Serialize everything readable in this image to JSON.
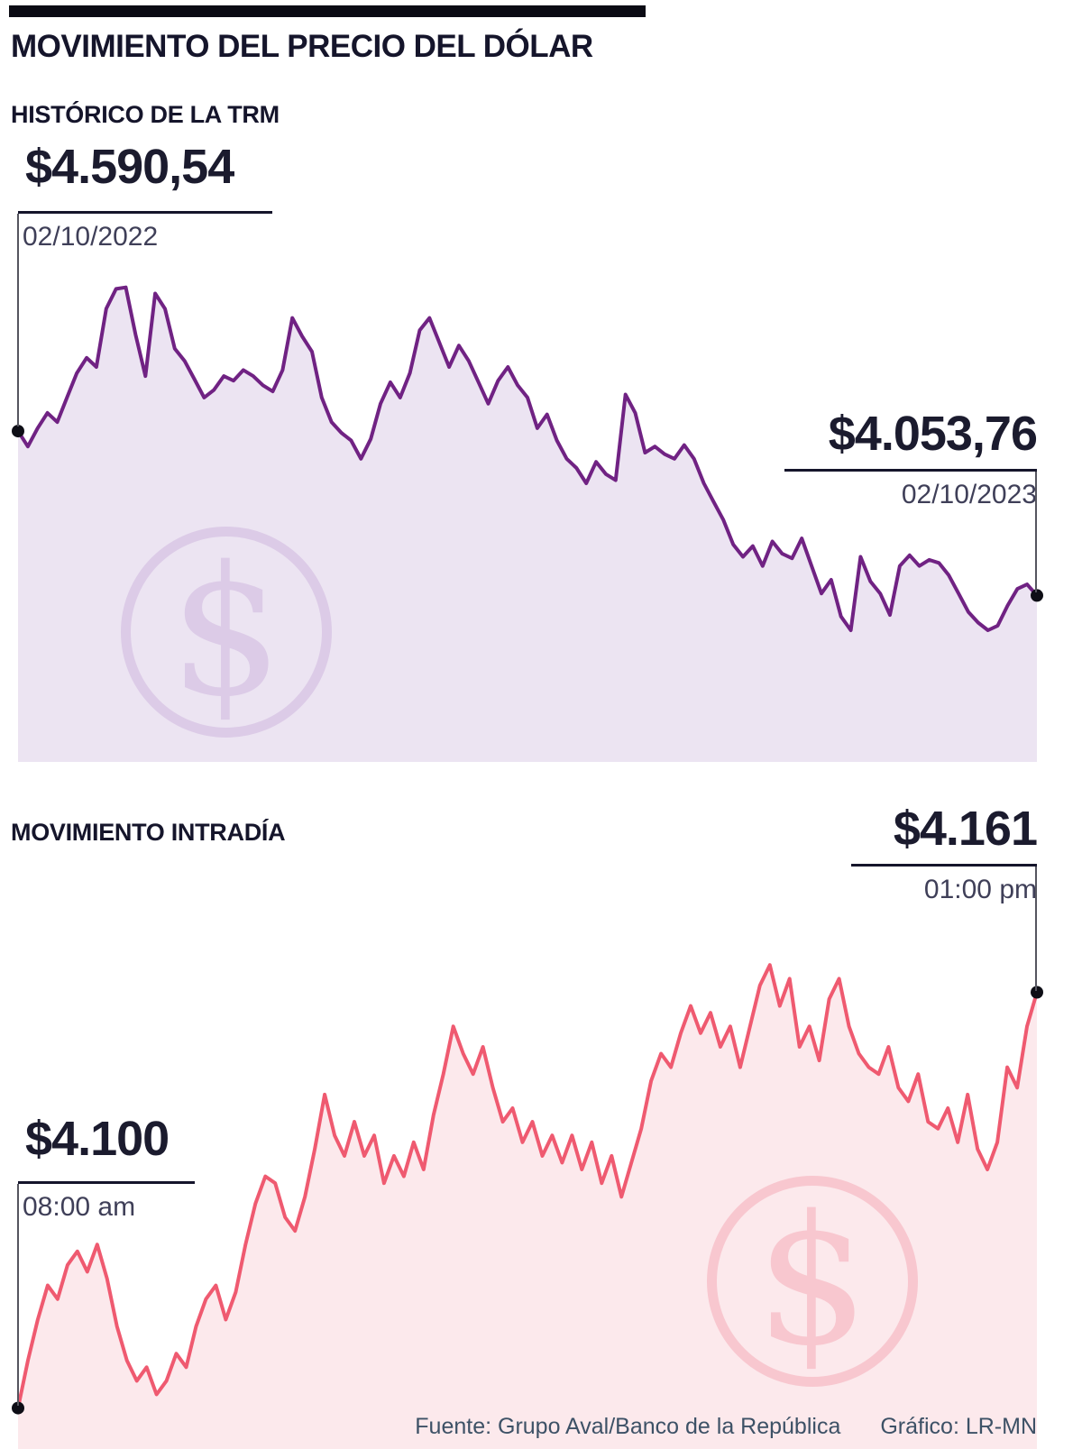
{
  "header": {
    "title": "MOVIMIENTO DEL PRECIO DEL DÓLAR"
  },
  "sections": {
    "trm": {
      "title": "HISTÓRICO DE LA TRM",
      "start": {
        "value": "$4.590,54",
        "label": "02/10/2022"
      },
      "end": {
        "value": "$4.053,76",
        "label": "02/10/2023"
      }
    },
    "intraday": {
      "title": "MOVIMIENTO INTRADÍA",
      "start": {
        "value": "$4.100",
        "label": "08:00 am"
      },
      "end": {
        "value": "$4.161",
        "label": "01:00 pm"
      }
    }
  },
  "watermark": {
    "symbol": "$",
    "icon": "dollar-sign-circle-icon"
  },
  "footer": {
    "source": "Fuente: Grupo Aval/Banco de la República",
    "credit": "Gráfico: LR-MN"
  },
  "colors": {
    "accent_bar": "#0b0b14",
    "title_text": "#15152b",
    "date_text": "#3f3f58",
    "footer_text": "#3d5166",
    "trm_line": "#702283",
    "trm_fill": "#ece4f2",
    "trm_watermark": "#dccbe7",
    "intraday_line": "#ef5a70",
    "intraday_fill": "#fce9ec",
    "intraday_watermark": "#f8c7cf",
    "endpoint_dot": "#0e0e16"
  },
  "chart_data": [
    {
      "id": "trm",
      "type": "area",
      "title": "HISTÓRICO DE LA TRM",
      "x_start_label": "02/10/2022",
      "x_end_label": "02/10/2023",
      "start_value": 4590.54,
      "end_value": 4053.76,
      "ylim": [
        3510,
        5115
      ],
      "grid": false,
      "legend": false,
      "line_color": "#702283",
      "fill_color": "#ece4f2",
      "dot_color": "#0e0e16",
      "values": [
        4590.54,
        4540,
        4600,
        4650,
        4620,
        4700,
        4780,
        4830,
        4800,
        4990,
        5055,
        5060,
        4905,
        4770,
        5040,
        4990,
        4860,
        4820,
        4760,
        4700,
        4725,
        4770,
        4755,
        4790,
        4770,
        4740,
        4720,
        4790,
        4960,
        4900,
        4850,
        4700,
        4620,
        4585,
        4560,
        4500,
        4565,
        4680,
        4750,
        4700,
        4780,
        4920,
        4960,
        4880,
        4800,
        4870,
        4820,
        4750,
        4680,
        4755,
        4800,
        4740,
        4700,
        4600,
        4645,
        4560,
        4500,
        4470,
        4420,
        4490,
        4450,
        4430,
        4710,
        4650,
        4520,
        4540,
        4515,
        4500,
        4545,
        4500,
        4420,
        4360,
        4300,
        4220,
        4180,
        4215,
        4150,
        4230,
        4190,
        4175,
        4240,
        4150,
        4060,
        4105,
        3985,
        3940,
        4180,
        4100,
        4060,
        3990,
        4150,
        4185,
        4150,
        4170,
        4160,
        4120,
        4060,
        4000,
        3965,
        3940,
        3955,
        4020,
        4075,
        4090,
        4053.76
      ]
    },
    {
      "id": "intraday",
      "type": "area",
      "title": "MOVIMIENTO INTRADÍA",
      "x_start_label": "08:00 am",
      "x_end_label": "01:00 pm",
      "start_value": 4100,
      "end_value": 4161,
      "ylim": [
        4094,
        4169
      ],
      "grid": false,
      "legend": false,
      "line_color": "#ef5a70",
      "fill_color": "#fce9ec",
      "dot_color": "#0e0e16",
      "values": [
        4100,
        4107,
        4113,
        4118,
        4116,
        4121,
        4123,
        4120,
        4124,
        4119,
        4112,
        4107,
        4104,
        4106,
        4102,
        4104,
        4108,
        4106,
        4112,
        4116,
        4118,
        4113,
        4117,
        4124,
        4130,
        4134,
        4133,
        4128,
        4126,
        4131,
        4138,
        4146,
        4140,
        4137,
        4142,
        4137,
        4140,
        4133,
        4137,
        4134,
        4139,
        4135,
        4143,
        4149,
        4156,
        4152,
        4149,
        4153,
        4147,
        4142,
        4144,
        4139,
        4142,
        4137,
        4140,
        4136,
        4140,
        4135,
        4139,
        4133,
        4137,
        4131,
        4136,
        4141,
        4148,
        4152,
        4150,
        4155,
        4159,
        4155,
        4158,
        4153,
        4156,
        4150,
        4156,
        4162,
        4165,
        4159,
        4163,
        4153,
        4156,
        4151,
        4160,
        4163,
        4156,
        4152,
        4150,
        4149,
        4153,
        4147,
        4145,
        4149,
        4142,
        4141,
        4144,
        4139,
        4146,
        4138,
        4135,
        4139,
        4150,
        4147,
        4156,
        4161
      ]
    }
  ]
}
